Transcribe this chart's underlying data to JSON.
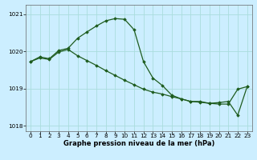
{
  "line1_x": [
    0,
    1,
    2,
    3,
    4,
    5,
    6,
    7,
    8,
    9,
    10,
    11,
    12,
    13,
    14,
    15,
    16,
    17,
    18,
    19,
    20,
    21,
    22,
    23
  ],
  "line1_y": [
    1019.72,
    1019.85,
    1019.8,
    1020.02,
    1020.08,
    1020.35,
    1020.52,
    1020.68,
    1020.82,
    1020.88,
    1020.86,
    1020.58,
    1019.72,
    1019.28,
    1019.08,
    1018.82,
    1018.72,
    1018.65,
    1018.65,
    1018.6,
    1018.62,
    1018.65,
    1018.28,
    1019.05
  ],
  "line2_x": [
    0,
    1,
    2,
    3,
    4,
    5,
    6,
    7,
    8,
    9,
    10,
    11,
    12,
    13,
    14,
    15,
    16,
    17,
    18,
    19,
    20,
    21,
    22,
    23
  ],
  "line2_y": [
    1019.72,
    1019.82,
    1019.78,
    1019.98,
    1020.05,
    1019.88,
    1019.75,
    1019.62,
    1019.48,
    1019.35,
    1019.22,
    1019.1,
    1018.98,
    1018.9,
    1018.85,
    1018.78,
    1018.72,
    1018.65,
    1018.63,
    1018.6,
    1018.58,
    1018.58,
    1018.98,
    1019.05
  ],
  "line_color": "#1e5c1e",
  "marker": "D",
  "marker_size": 1.8,
  "background_color": "#cceeff",
  "grid_color": "#aadddd",
  "xlabel": "Graphe pression niveau de la mer (hPa)",
  "ylim": [
    1017.85,
    1021.25
  ],
  "xlim": [
    -0.5,
    23.5
  ],
  "yticks": [
    1018,
    1019,
    1020,
    1021
  ],
  "xticks": [
    0,
    1,
    2,
    3,
    4,
    5,
    6,
    7,
    8,
    9,
    10,
    11,
    12,
    13,
    14,
    15,
    16,
    17,
    18,
    19,
    20,
    21,
    22,
    23
  ],
  "xlabel_fontsize": 6.0,
  "tick_fontsize": 5.2,
  "linewidth": 0.9
}
